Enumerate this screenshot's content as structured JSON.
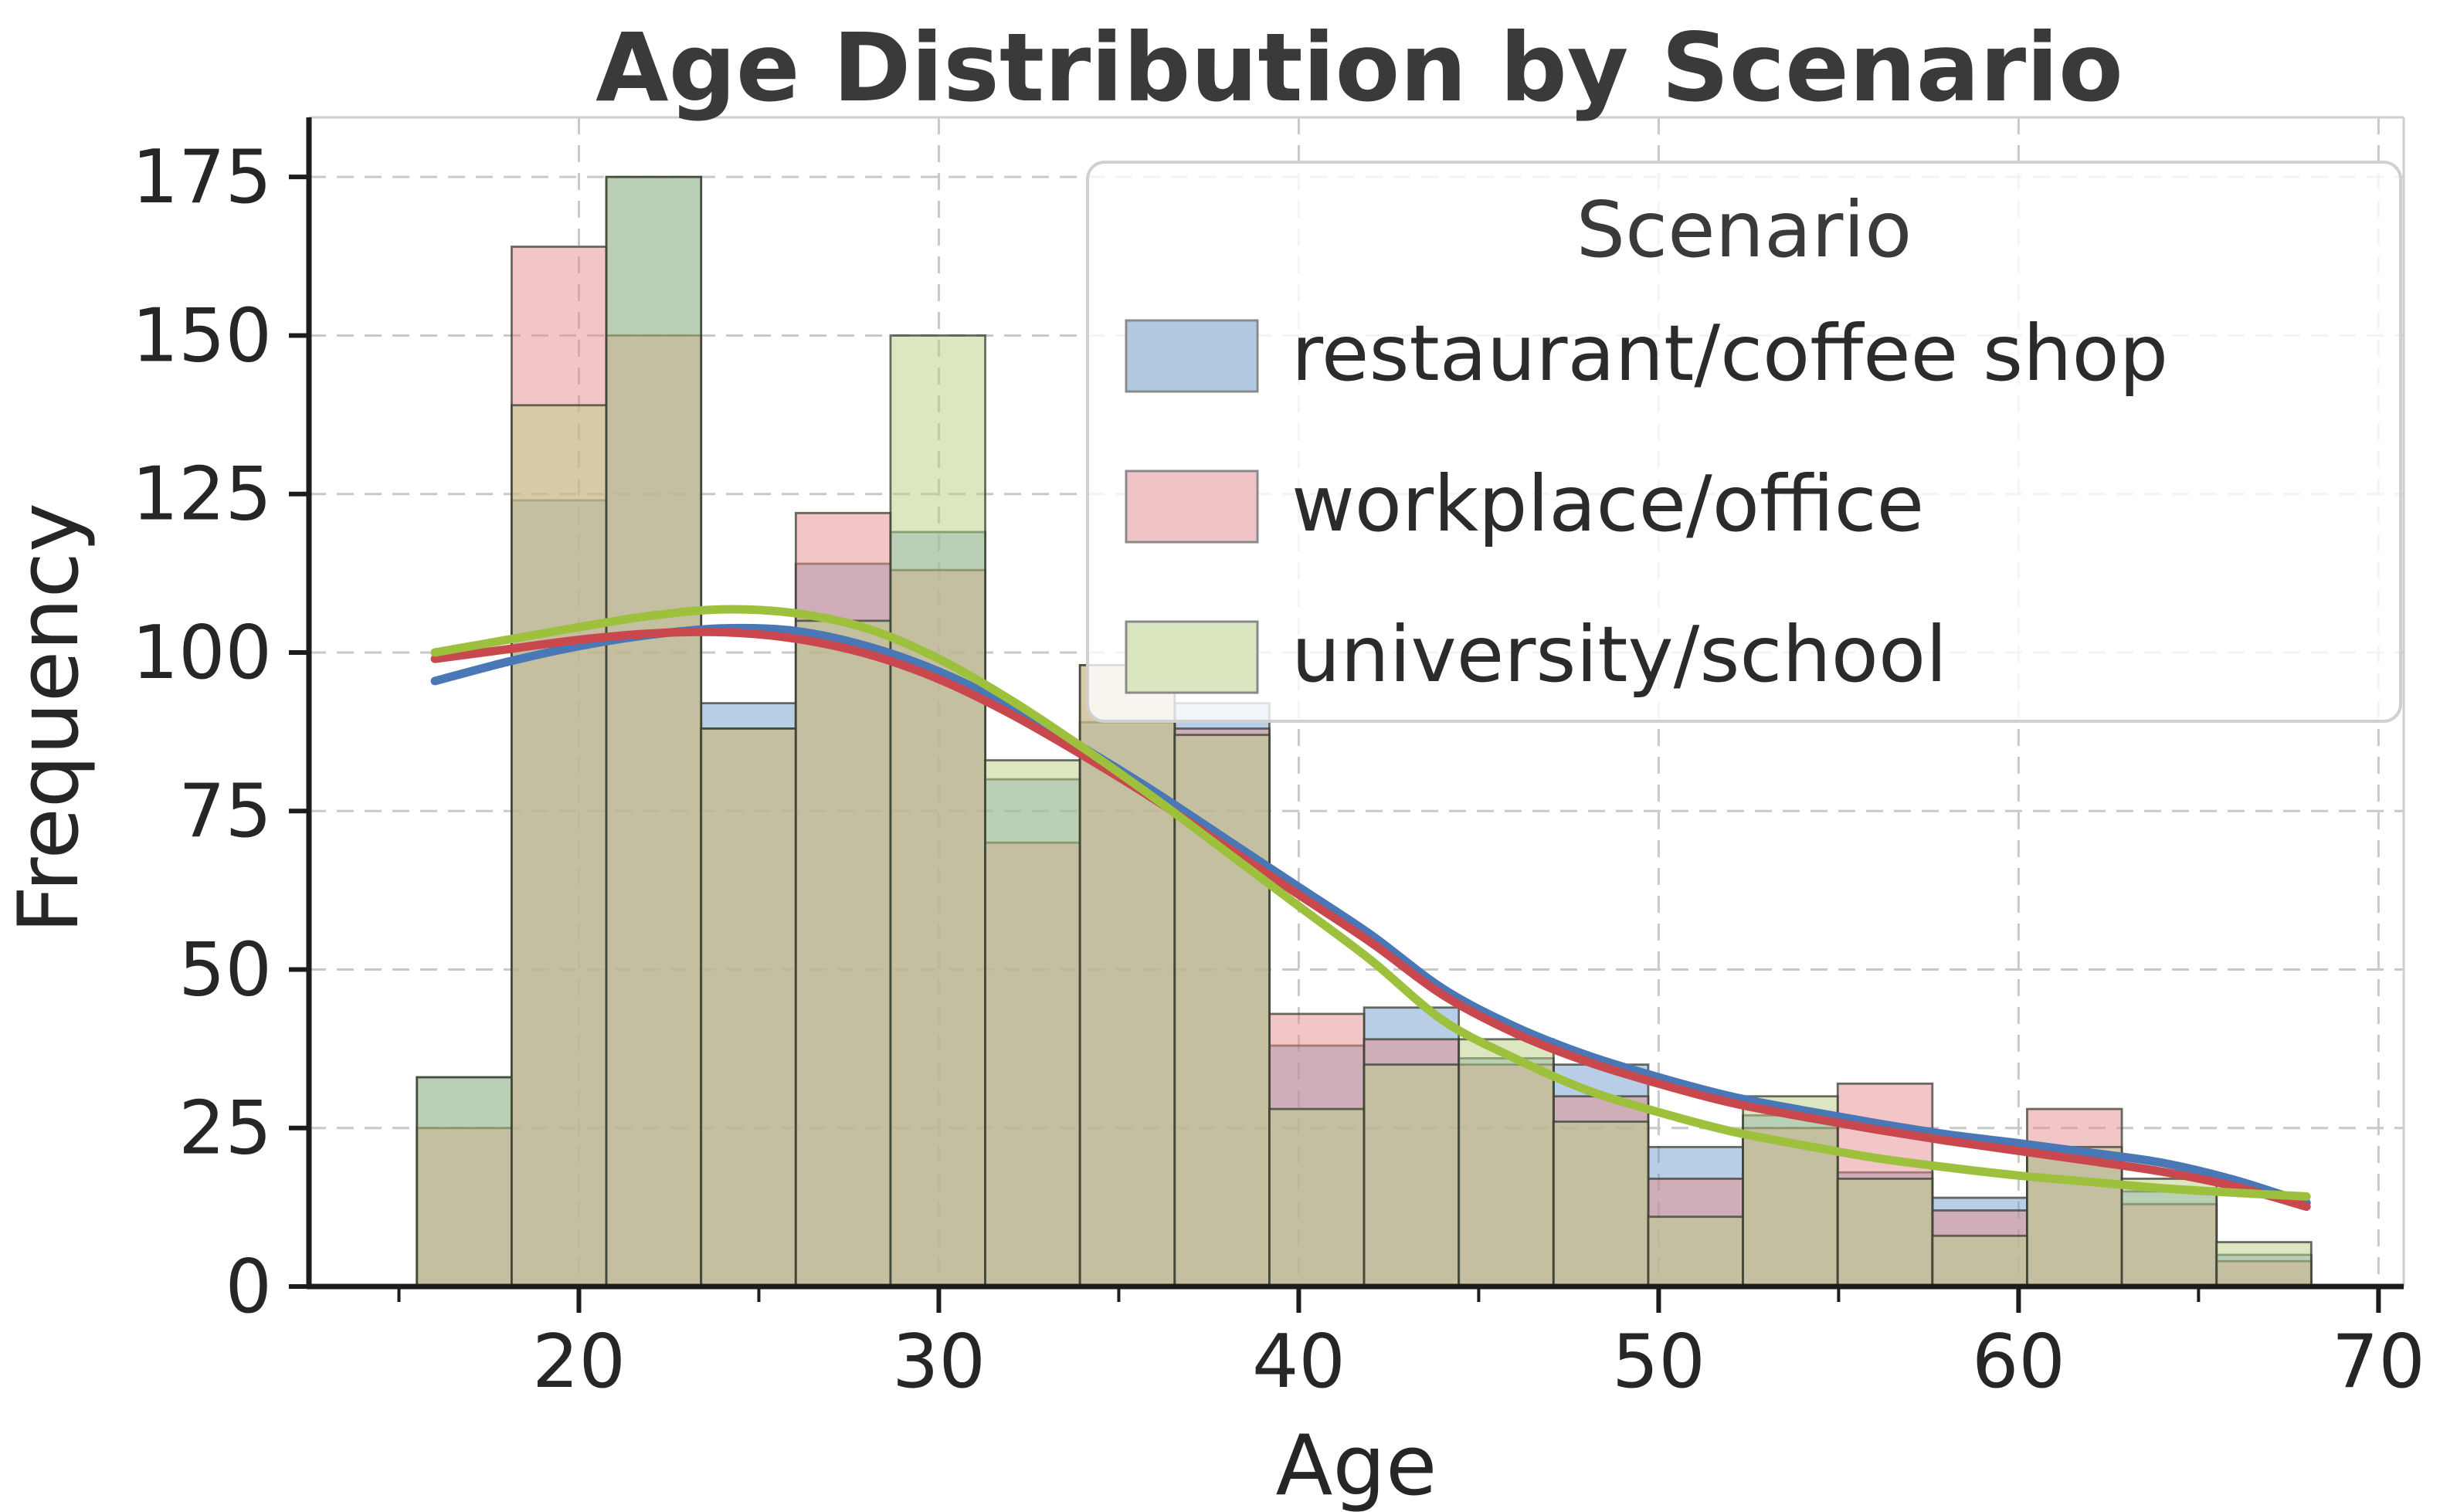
{
  "title": "Age Distribution by Scenario",
  "axes": {
    "x_label": "Age",
    "y_label": "Frequency",
    "x_ticks": [
      20,
      30,
      40,
      50,
      60,
      70
    ],
    "x_minor_ticks": [
      15,
      25,
      35,
      45,
      55,
      65
    ],
    "y_ticks": [
      0,
      25,
      50,
      75,
      100,
      125,
      150,
      175
    ],
    "x_range": [
      12.5,
      70.7
    ],
    "y_range": [
      0,
      184.4
    ],
    "grid": "dashed"
  },
  "legend": {
    "title": "Scenario",
    "entries": [
      {
        "label": "restaurant/coffee shop",
        "swatch": "#b3c9e2"
      },
      {
        "label": "workplace/office",
        "swatch": "#f0c4c6"
      },
      {
        "label": "university/school",
        "swatch": "#dae6c0"
      }
    ]
  },
  "chart_data": {
    "type": "histogram+kde",
    "title": "Age Distribution by Scenario",
    "xlabel": "Age",
    "ylabel": "Frequency",
    "ylim": [
      0,
      184.4
    ],
    "bin_start": 15.5,
    "bin_width": 2.6316,
    "bin_count": 20,
    "series": [
      {
        "name": "restaurant/coffee shop",
        "bar_color": "#719DCD",
        "line_color": "#4A77B5",
        "counts": [
          33,
          124,
          175,
          92,
          114,
          119,
          80,
          89,
          92,
          38,
          44,
          36,
          35,
          22,
          27,
          18,
          14,
          21,
          15,
          5
        ]
      },
      {
        "name": "workplace/office",
        "bar_color": "#E58D8D",
        "line_color": "#C8484E",
        "counts": [
          25,
          164,
          150,
          88,
          122,
          113,
          70,
          98,
          88,
          43,
          39,
          35,
          30,
          17,
          25,
          32,
          12,
          28,
          13,
          4
        ]
      },
      {
        "name": "university/school",
        "bar_color": "#B9CF85",
        "line_color": "#9DC13C",
        "counts": [
          33,
          139,
          175,
          88,
          105,
          150,
          83,
          98,
          87,
          28,
          35,
          39,
          26,
          11,
          30,
          17,
          8,
          22,
          17,
          7
        ]
      }
    ],
    "kde": [
      {
        "name": "restaurant/coffee shop",
        "points": [
          [
            16,
            95.5
          ],
          [
            18,
            98.5
          ],
          [
            20,
            101
          ],
          [
            22,
            102.8
          ],
          [
            24,
            103.8
          ],
          [
            26,
            103.4
          ],
          [
            28,
            101
          ],
          [
            30,
            97
          ],
          [
            32,
            91.5
          ],
          [
            34,
            85
          ],
          [
            36,
            78
          ],
          [
            38,
            70.5
          ],
          [
            40,
            63
          ],
          [
            42,
            55.5
          ],
          [
            44,
            47
          ],
          [
            46,
            41
          ],
          [
            48,
            36.5
          ],
          [
            50,
            33
          ],
          [
            52,
            30
          ],
          [
            54,
            27.8
          ],
          [
            56,
            25.8
          ],
          [
            58,
            24
          ],
          [
            60,
            22.6
          ],
          [
            62,
            21.1
          ],
          [
            64,
            19.5
          ],
          [
            66,
            16.8
          ],
          [
            68,
            13.2
          ]
        ]
      },
      {
        "name": "workplace/office",
        "points": [
          [
            16,
            99
          ],
          [
            18,
            100.5
          ],
          [
            20,
            102
          ],
          [
            22,
            103
          ],
          [
            24,
            103.2
          ],
          [
            26,
            102.2
          ],
          [
            28,
            99.8
          ],
          [
            30,
            95.8
          ],
          [
            32,
            90.3
          ],
          [
            34,
            83.8
          ],
          [
            36,
            76.8
          ],
          [
            38,
            69.3
          ],
          [
            40,
            61.8
          ],
          [
            42,
            54.3
          ],
          [
            44,
            46
          ],
          [
            46,
            40
          ],
          [
            48,
            35.5
          ],
          [
            50,
            32
          ],
          [
            52,
            29
          ],
          [
            54,
            26.8
          ],
          [
            56,
            24.8
          ],
          [
            58,
            23
          ],
          [
            60,
            21.4
          ],
          [
            62,
            19.8
          ],
          [
            64,
            18.1
          ],
          [
            66,
            15.8
          ],
          [
            68,
            12.6
          ]
        ]
      },
      {
        "name": "university/school",
        "points": [
          [
            16,
            100
          ],
          [
            18,
            102
          ],
          [
            20,
            104
          ],
          [
            22,
            105.8
          ],
          [
            24,
            106.8
          ],
          [
            26,
            106.2
          ],
          [
            28,
            103.8
          ],
          [
            30,
            99
          ],
          [
            32,
            92.5
          ],
          [
            34,
            85
          ],
          [
            36,
            77
          ],
          [
            38,
            68.5
          ],
          [
            40,
            60
          ],
          [
            42,
            51.5
          ],
          [
            44,
            42
          ],
          [
            46,
            36
          ],
          [
            48,
            31
          ],
          [
            50,
            27.5
          ],
          [
            52,
            24.5
          ],
          [
            54,
            22.3
          ],
          [
            56,
            20.3
          ],
          [
            58,
            18.8
          ],
          [
            60,
            17.5
          ],
          [
            62,
            16.5
          ],
          [
            64,
            15.5
          ],
          [
            66,
            14.8
          ],
          [
            68,
            14.2
          ]
        ]
      }
    ]
  },
  "style": {
    "bar_fill_opacity": 0.5,
    "bar_edge_color": "#3a3d31",
    "grid_color": "#c9c9c9",
    "spine_dark": "#1c1c1c",
    "spine_light": "#cfcfcf",
    "legend_border": "#d0d0d0",
    "kde_width": 11
  }
}
